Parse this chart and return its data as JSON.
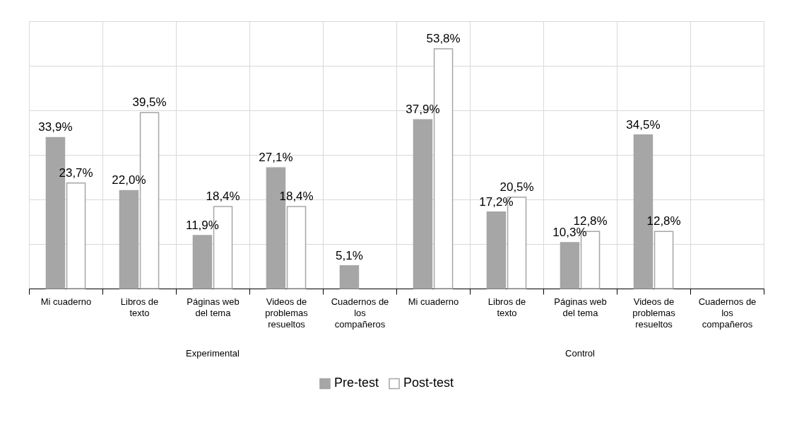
{
  "chart_data": {
    "type": "bar",
    "categories": [
      "Mi cuaderno",
      "Libros de texto",
      "Páginas web del tema",
      "Videos de problemas resueltos",
      "Cuadernos de los compañeros",
      "Mi cuaderno",
      "Libros de texto",
      "Páginas web del tema",
      "Videos de problemas resueltos",
      "Cuadernos de los compañeros"
    ],
    "series": [
      {
        "name": "Pre-test",
        "color": "#a6a6a6",
        "values": [
          33.9,
          22.0,
          11.9,
          27.1,
          5.1,
          37.9,
          17.2,
          10.3,
          34.5,
          null
        ],
        "value_labels": [
          "33,9%",
          "22,0%",
          "11,9%",
          "27,1%",
          "5,1%",
          "37,9%",
          "17,2%",
          "10,3%",
          "34,5%",
          null
        ]
      },
      {
        "name": "Post-test",
        "color": "#ffffff",
        "values": [
          23.7,
          39.5,
          18.4,
          18.4,
          null,
          53.8,
          20.5,
          12.8,
          12.8,
          null
        ],
        "value_labels": [
          "23,7%",
          "39,5%",
          "18,4%",
          "18,4%",
          null,
          "53,8%",
          "20,5%",
          "12,8%",
          "12,8%",
          null
        ]
      }
    ],
    "ylim": [
      0,
      60
    ],
    "yticks": [
      {
        "value": 0,
        "label": null
      },
      {
        "value": 10,
        "label": null
      },
      {
        "value": 20,
        "label": null
      },
      {
        "value": 30,
        "label": null
      },
      {
        "value": 40,
        "label": null
      },
      {
        "value": 50,
        "label": null
      },
      {
        "value": 60,
        "label": null
      }
    ],
    "tick_labels": "x",
    "grid": true,
    "legend": "bottom",
    "annotations": [
      "Experimental",
      "Control"
    ]
  }
}
